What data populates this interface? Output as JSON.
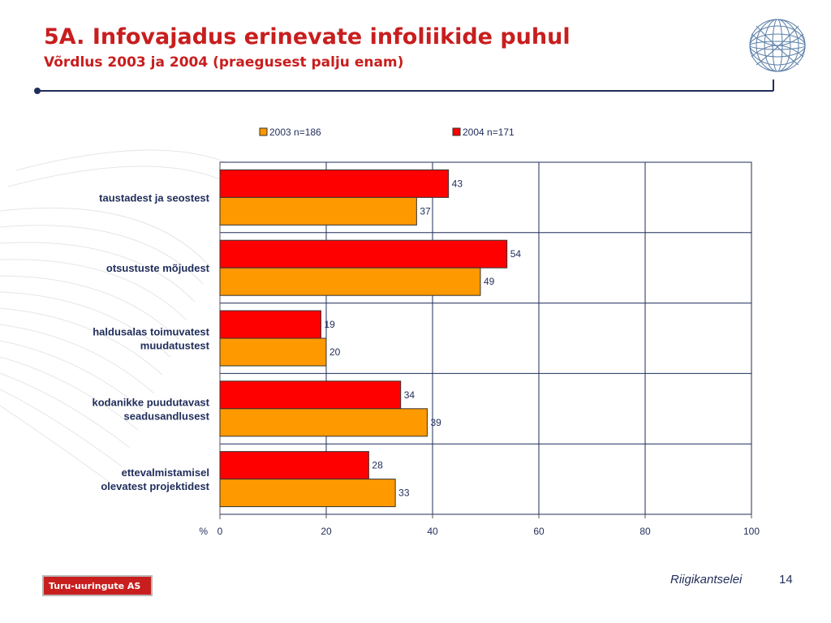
{
  "slide": {
    "title": "5A. Infovajadus erinevate infoliikide puhul",
    "subtitle": "Võrdlus 2003 ja 2004 (praegusest palju enam)",
    "footer_logo_text": "Turu-uuringute AS",
    "footer_client": "Riigikantselei",
    "page_number": "14"
  },
  "colors": {
    "accent_red": "#c81e1e",
    "navy": "#1f2d5a",
    "series_2003": "#ff9900",
    "series_2004": "#ff0000"
  },
  "icons": [
    "globe-logo-icon",
    "swirl-background"
  ],
  "chart_data": {
    "type": "bar",
    "orientation": "horizontal",
    "categories": [
      "taustadest ja seostest",
      "otsustuste mõjudest",
      "haldusalas toimuvatest muudatustest",
      "kodanikke puudutavast seadusandlusest",
      "ettevalmistamisel olevatest projektidest"
    ],
    "category_lines": [
      [
        "taustadest ja seostest"
      ],
      [
        "otsustuste mõjudest"
      ],
      [
        "haldusalas toimuvatest",
        "muudatustest"
      ],
      [
        "kodanikke puudutavast",
        "seadusandlusest"
      ],
      [
        "ettevalmistamisel",
        "olevatest projektidest"
      ]
    ],
    "series": [
      {
        "name": "2004 n=171",
        "color": "#ff0000",
        "values": [
          43,
          54,
          19,
          34,
          28
        ]
      },
      {
        "name": "2003 n=186",
        "color": "#ff9900",
        "values": [
          37,
          49,
          20,
          39,
          33
        ]
      }
    ],
    "legend_order": [
      "2003 n=186",
      "2004 n=171"
    ],
    "legend_position": "top",
    "xlabel": "%",
    "xlim": [
      0,
      100
    ],
    "xticks": [
      0,
      20,
      40,
      60,
      80,
      100
    ],
    "grid": true,
    "data_labels": true
  }
}
